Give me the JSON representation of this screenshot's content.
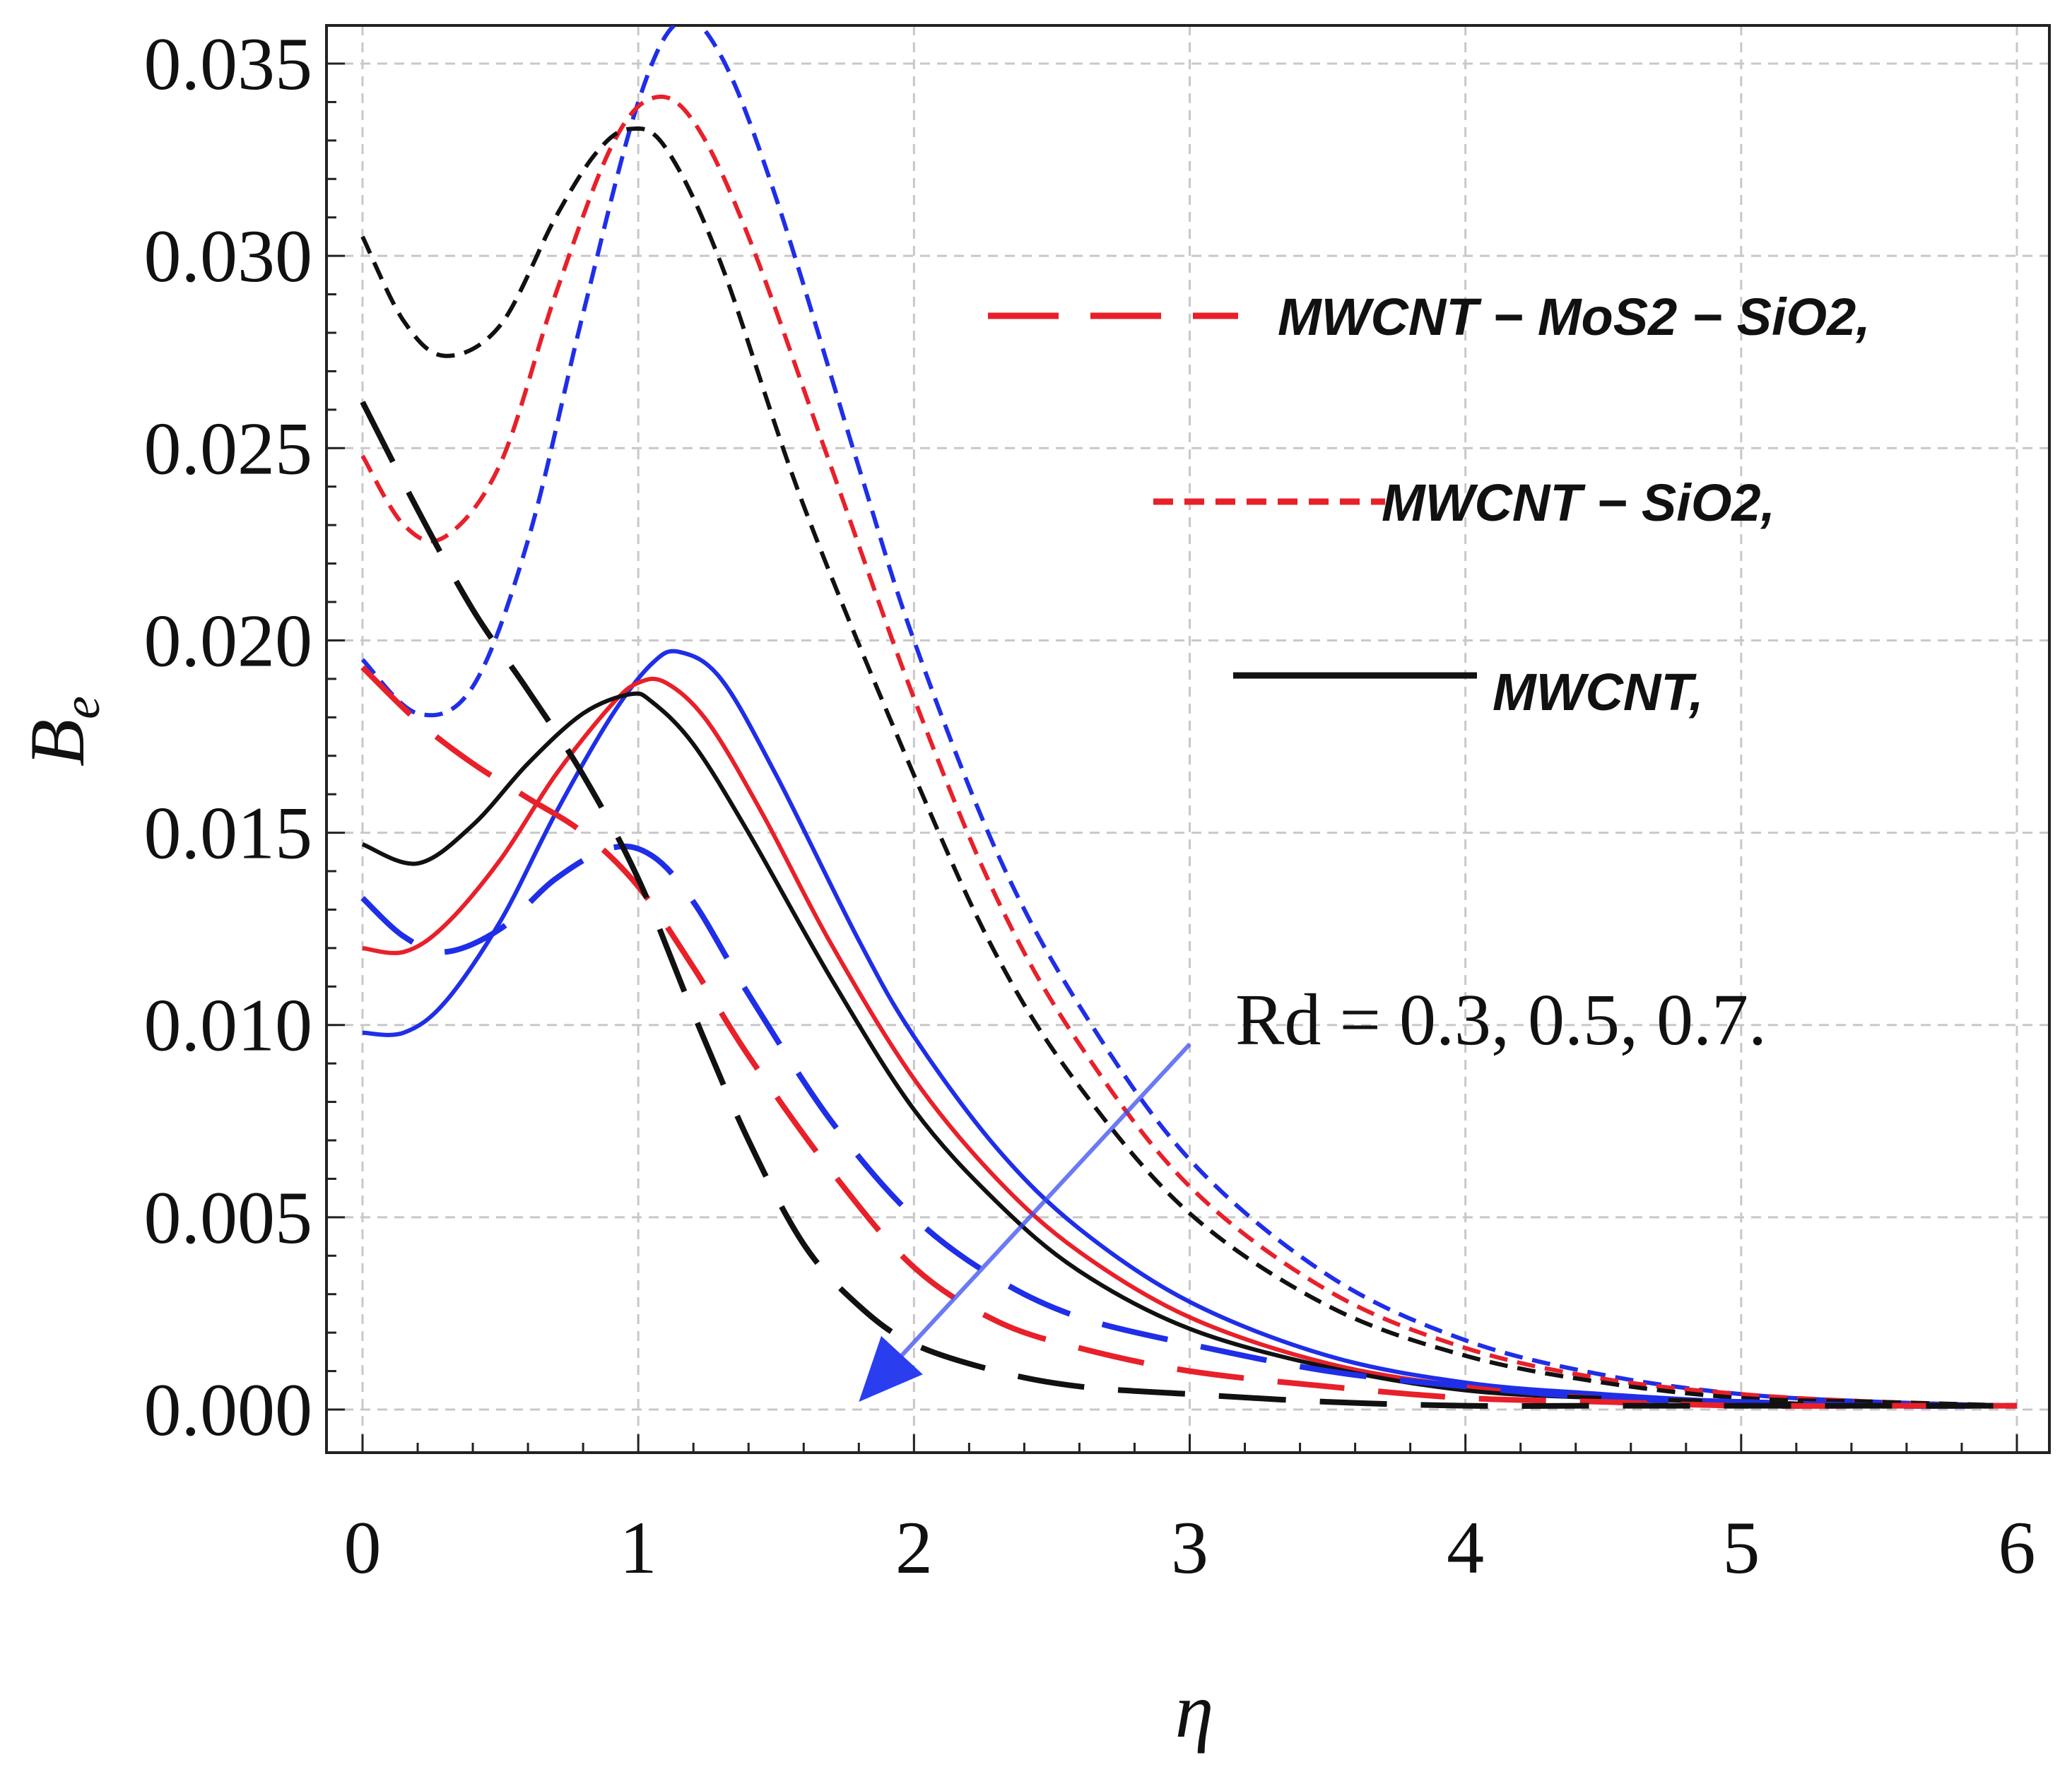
{
  "chart_data": {
    "type": "line",
    "title": "",
    "xlabel": "η",
    "ylabel": "B",
    "ylabel_subscript": "e",
    "xlim": [
      0,
      6
    ],
    "ylim": [
      0,
      0.036
    ],
    "grid": true,
    "xticks": [
      "0",
      "1",
      "2",
      "3",
      "4",
      "5",
      "6"
    ],
    "xtick_values": [
      0,
      1,
      2,
      3,
      4,
      5,
      6
    ],
    "yticks": [
      "0.000",
      "0.005",
      "0.010",
      "0.015",
      "0.020",
      "0.025",
      "0.030",
      "0.035"
    ],
    "ytick_values": [
      0,
      0.005,
      0.01,
      0.015,
      0.02,
      0.025,
      0.03,
      0.035
    ],
    "colors": {
      "blue": "#1f2ee8",
      "red": "#e8202a",
      "black": "#111111",
      "arrow": "#3a4ef0"
    },
    "legend": [
      {
        "label": "MWCNT − MoS2 − SiO2,",
        "style": "long-dash",
        "color": "#e8202a",
        "position": "top-right"
      },
      {
        "label": "MWCNT − SiO2,",
        "style": "short-dash",
        "color": "#e8202a",
        "position": "right"
      },
      {
        "label": "MWCNT,",
        "style": "solid",
        "color": "#111111",
        "position": "right"
      }
    ],
    "annotation": "Rd = 0.3, 0.5, 0.7.",
    "arrow": {
      "from": [
        3.0,
        0.0095
      ],
      "to": [
        1.8,
        0.0002
      ]
    },
    "series": [
      {
        "name": "MWCNT − SiO2, Rd=0.3",
        "color": "#1f2ee8",
        "style": "short-dash",
        "x": [
          0,
          0.2,
          0.4,
          0.6,
          0.8,
          1.0,
          1.15,
          1.3,
          1.5,
          1.8,
          2.0,
          2.3,
          2.6,
          3.0,
          3.5,
          4.0,
          4.5,
          5.0,
          5.5,
          6.0
        ],
        "y": [
          0.0195,
          0.0181,
          0.0188,
          0.0226,
          0.0285,
          0.034,
          0.0361,
          0.0352,
          0.0315,
          0.0245,
          0.02,
          0.0145,
          0.0105,
          0.0065,
          0.0035,
          0.0018,
          0.0009,
          0.0004,
          0.0002,
          0.0001
        ]
      },
      {
        "name": "MWCNT − SiO2, Rd=0.5",
        "color": "#e8202a",
        "style": "short-dash",
        "x": [
          0,
          0.15,
          0.3,
          0.5,
          0.7,
          0.9,
          1.05,
          1.2,
          1.4,
          1.7,
          2.0,
          2.3,
          2.6,
          3.0,
          3.5,
          4.0,
          4.5,
          5.0,
          5.5,
          6.0
        ],
        "y": [
          0.0248,
          0.023,
          0.0227,
          0.0246,
          0.029,
          0.0328,
          0.0341,
          0.0335,
          0.0305,
          0.0245,
          0.0185,
          0.0133,
          0.0095,
          0.0058,
          0.0031,
          0.0016,
          0.0008,
          0.0004,
          0.0002,
          0.0001
        ]
      },
      {
        "name": "MWCNT − SiO2, Rd=0.7",
        "color": "#111111",
        "style": "short-dash",
        "x": [
          0,
          0.15,
          0.3,
          0.5,
          0.7,
          0.85,
          0.97,
          1.1,
          1.3,
          1.6,
          2.0,
          2.3,
          2.6,
          3.0,
          3.5,
          4.0,
          4.5,
          5.0,
          5.5,
          6.0
        ],
        "y": [
          0.0305,
          0.0283,
          0.0274,
          0.0282,
          0.031,
          0.0327,
          0.0333,
          0.0328,
          0.0298,
          0.0235,
          0.0165,
          0.0118,
          0.0084,
          0.0051,
          0.0027,
          0.0014,
          0.0007,
          0.0003,
          0.0002,
          0.0001
        ]
      },
      {
        "name": "MWCNT, Rd=0.3",
        "color": "#1f2ee8",
        "style": "solid",
        "x": [
          0,
          0.15,
          0.3,
          0.5,
          0.7,
          0.9,
          1.05,
          1.15,
          1.3,
          1.5,
          1.8,
          2.0,
          2.3,
          2.6,
          3.0,
          3.5,
          4.0,
          4.5,
          5.0,
          5.5,
          6.0
        ],
        "y": [
          0.0098,
          0.0098,
          0.0106,
          0.0127,
          0.0155,
          0.018,
          0.0194,
          0.0197,
          0.019,
          0.0165,
          0.0122,
          0.0097,
          0.0068,
          0.0047,
          0.0028,
          0.0014,
          0.0007,
          0.0004,
          0.0002,
          0.0001,
          0.0001
        ]
      },
      {
        "name": "MWCNT, Rd=0.5",
        "color": "#e8202a",
        "style": "solid",
        "x": [
          0,
          0.15,
          0.3,
          0.5,
          0.7,
          0.9,
          1.0,
          1.1,
          1.25,
          1.45,
          1.7,
          2.0,
          2.3,
          2.6,
          3.0,
          3.5,
          4.0,
          4.5,
          5.0,
          5.5,
          6.0
        ],
        "y": [
          0.012,
          0.0119,
          0.0126,
          0.0143,
          0.0165,
          0.0183,
          0.0189,
          0.0189,
          0.0179,
          0.0155,
          0.0121,
          0.0086,
          0.006,
          0.0041,
          0.0024,
          0.0012,
          0.0006,
          0.0003,
          0.0002,
          0.0001,
          0.0001
        ]
      },
      {
        "name": "MWCNT, Rd=0.7",
        "color": "#111111",
        "style": "solid",
        "x": [
          0,
          0.2,
          0.4,
          0.6,
          0.8,
          0.97,
          1.05,
          1.2,
          1.4,
          1.7,
          2.0,
          2.3,
          2.6,
          3.0,
          3.5,
          4.0,
          4.5,
          5.0,
          5.5,
          6.0
        ],
        "y": [
          0.0147,
          0.0142,
          0.0152,
          0.0168,
          0.0181,
          0.0186,
          0.0184,
          0.0173,
          0.015,
          0.0112,
          0.0078,
          0.0054,
          0.0036,
          0.0021,
          0.0011,
          0.0005,
          0.0003,
          0.0002,
          0.0001,
          0.0001
        ]
      },
      {
        "name": "MWCNT − MoS2 − SiO2, Rd=0.3",
        "color": "#1f2ee8",
        "style": "long-dash",
        "x": [
          0,
          0.15,
          0.3,
          0.5,
          0.7,
          0.9,
          1.05,
          1.2,
          1.4,
          1.7,
          2.0,
          2.3,
          2.6,
          3.0,
          3.5,
          4.0,
          4.5,
          5.0,
          5.5,
          6.0
        ],
        "y": [
          0.0133,
          0.0123,
          0.0119,
          0.0125,
          0.0138,
          0.0146,
          0.0144,
          0.0132,
          0.0108,
          0.0075,
          0.005,
          0.0034,
          0.0024,
          0.0017,
          0.001,
          0.0006,
          0.0003,
          0.0002,
          0.0001,
          0.0001
        ]
      },
      {
        "name": "MWCNT − MoS2 − SiO2, Rd=0.5",
        "color": "#e8202a",
        "style": "long-dash",
        "x": [
          0,
          0.2,
          0.4,
          0.6,
          0.8,
          1.0,
          1.2,
          1.4,
          1.7,
          2.0,
          2.3,
          2.6,
          3.0,
          3.5,
          4.0,
          4.5,
          5.0,
          5.5,
          6.0
        ],
        "y": [
          0.0193,
          0.0179,
          0.0168,
          0.0159,
          0.015,
          0.0136,
          0.0115,
          0.0092,
          0.0062,
          0.0037,
          0.0023,
          0.0016,
          0.001,
          0.0006,
          0.0003,
          0.0002,
          0.0001,
          0.0001,
          0.0001
        ]
      },
      {
        "name": "MWCNT − MoS2 − SiO2, Rd=0.7",
        "color": "#111111",
        "style": "long-dash",
        "x": [
          0,
          0.2,
          0.4,
          0.6,
          0.8,
          1.0,
          1.2,
          1.4,
          1.6,
          1.8,
          2.0,
          2.3,
          2.6,
          3.0,
          3.5,
          4.0,
          4.5,
          5.0,
          5.5,
          6.0
        ],
        "y": [
          0.0262,
          0.0234,
          0.0208,
          0.0187,
          0.0165,
          0.0138,
          0.0103,
          0.007,
          0.0043,
          0.0027,
          0.0017,
          0.001,
          0.0006,
          0.0004,
          0.0002,
          0.0001,
          0.0001,
          0.0001,
          0.0001,
          0.0001
        ]
      }
    ]
  }
}
